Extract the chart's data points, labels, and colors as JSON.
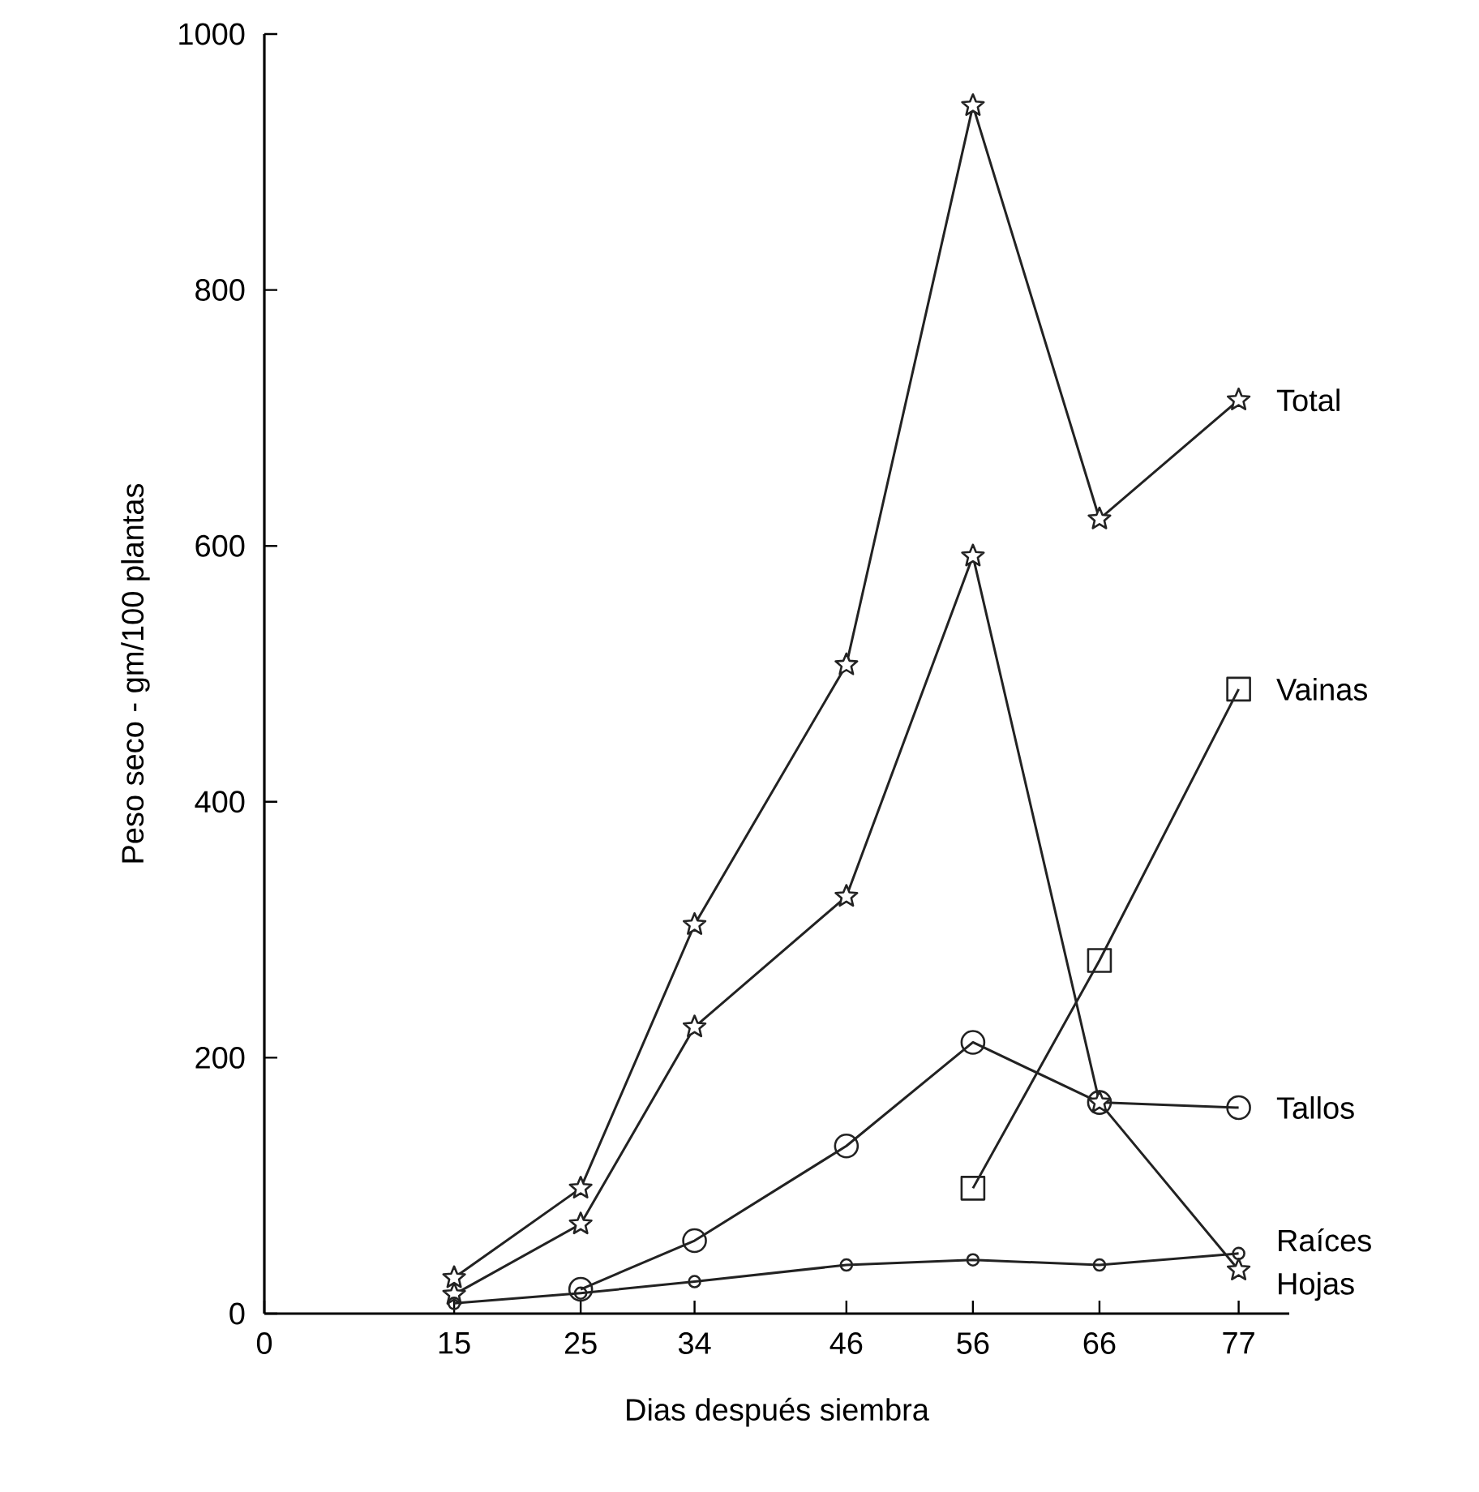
{
  "chart_data": {
    "type": "line",
    "xlabel": "Dias después siembra",
    "ylabel": "Peso seco - gm/100 plantas",
    "xlim": [
      0,
      81
    ],
    "ylim": [
      0,
      1000
    ],
    "xticks": [
      0,
      15,
      25,
      34,
      46,
      56,
      66,
      77
    ],
    "yticks": [
      0,
      200,
      400,
      600,
      800,
      1000
    ],
    "grid": false,
    "series": [
      {
        "name": "Total",
        "color": "#222222",
        "marker": "star",
        "x": [
          15,
          25,
          34,
          46,
          56,
          66,
          77
        ],
        "values": [
          28,
          98,
          304,
          507,
          944,
          621,
          714
        ]
      },
      {
        "name": "Vainas",
        "color": "#222222",
        "marker": "square",
        "x": [
          56,
          66,
          77
        ],
        "values": [
          98,
          276,
          488
        ]
      },
      {
        "name": "Tallos",
        "color": "#222222",
        "marker": "circle",
        "x": [
          25,
          34,
          46,
          56,
          66,
          77
        ],
        "values": [
          19,
          57,
          131,
          212,
          165,
          161
        ]
      },
      {
        "name": "Raíces",
        "color": "#222222",
        "marker": "circle",
        "x": [
          15,
          25,
          34,
          46,
          56,
          66,
          77
        ],
        "values": [
          8,
          16,
          25,
          38,
          42,
          38,
          47
        ]
      },
      {
        "name": "Hojas",
        "color": "#222222",
        "marker": "star",
        "x": [
          15,
          25,
          34,
          46,
          56,
          66,
          77
        ],
        "values": [
          15,
          70,
          224,
          326,
          592,
          165,
          34
        ]
      }
    ]
  }
}
